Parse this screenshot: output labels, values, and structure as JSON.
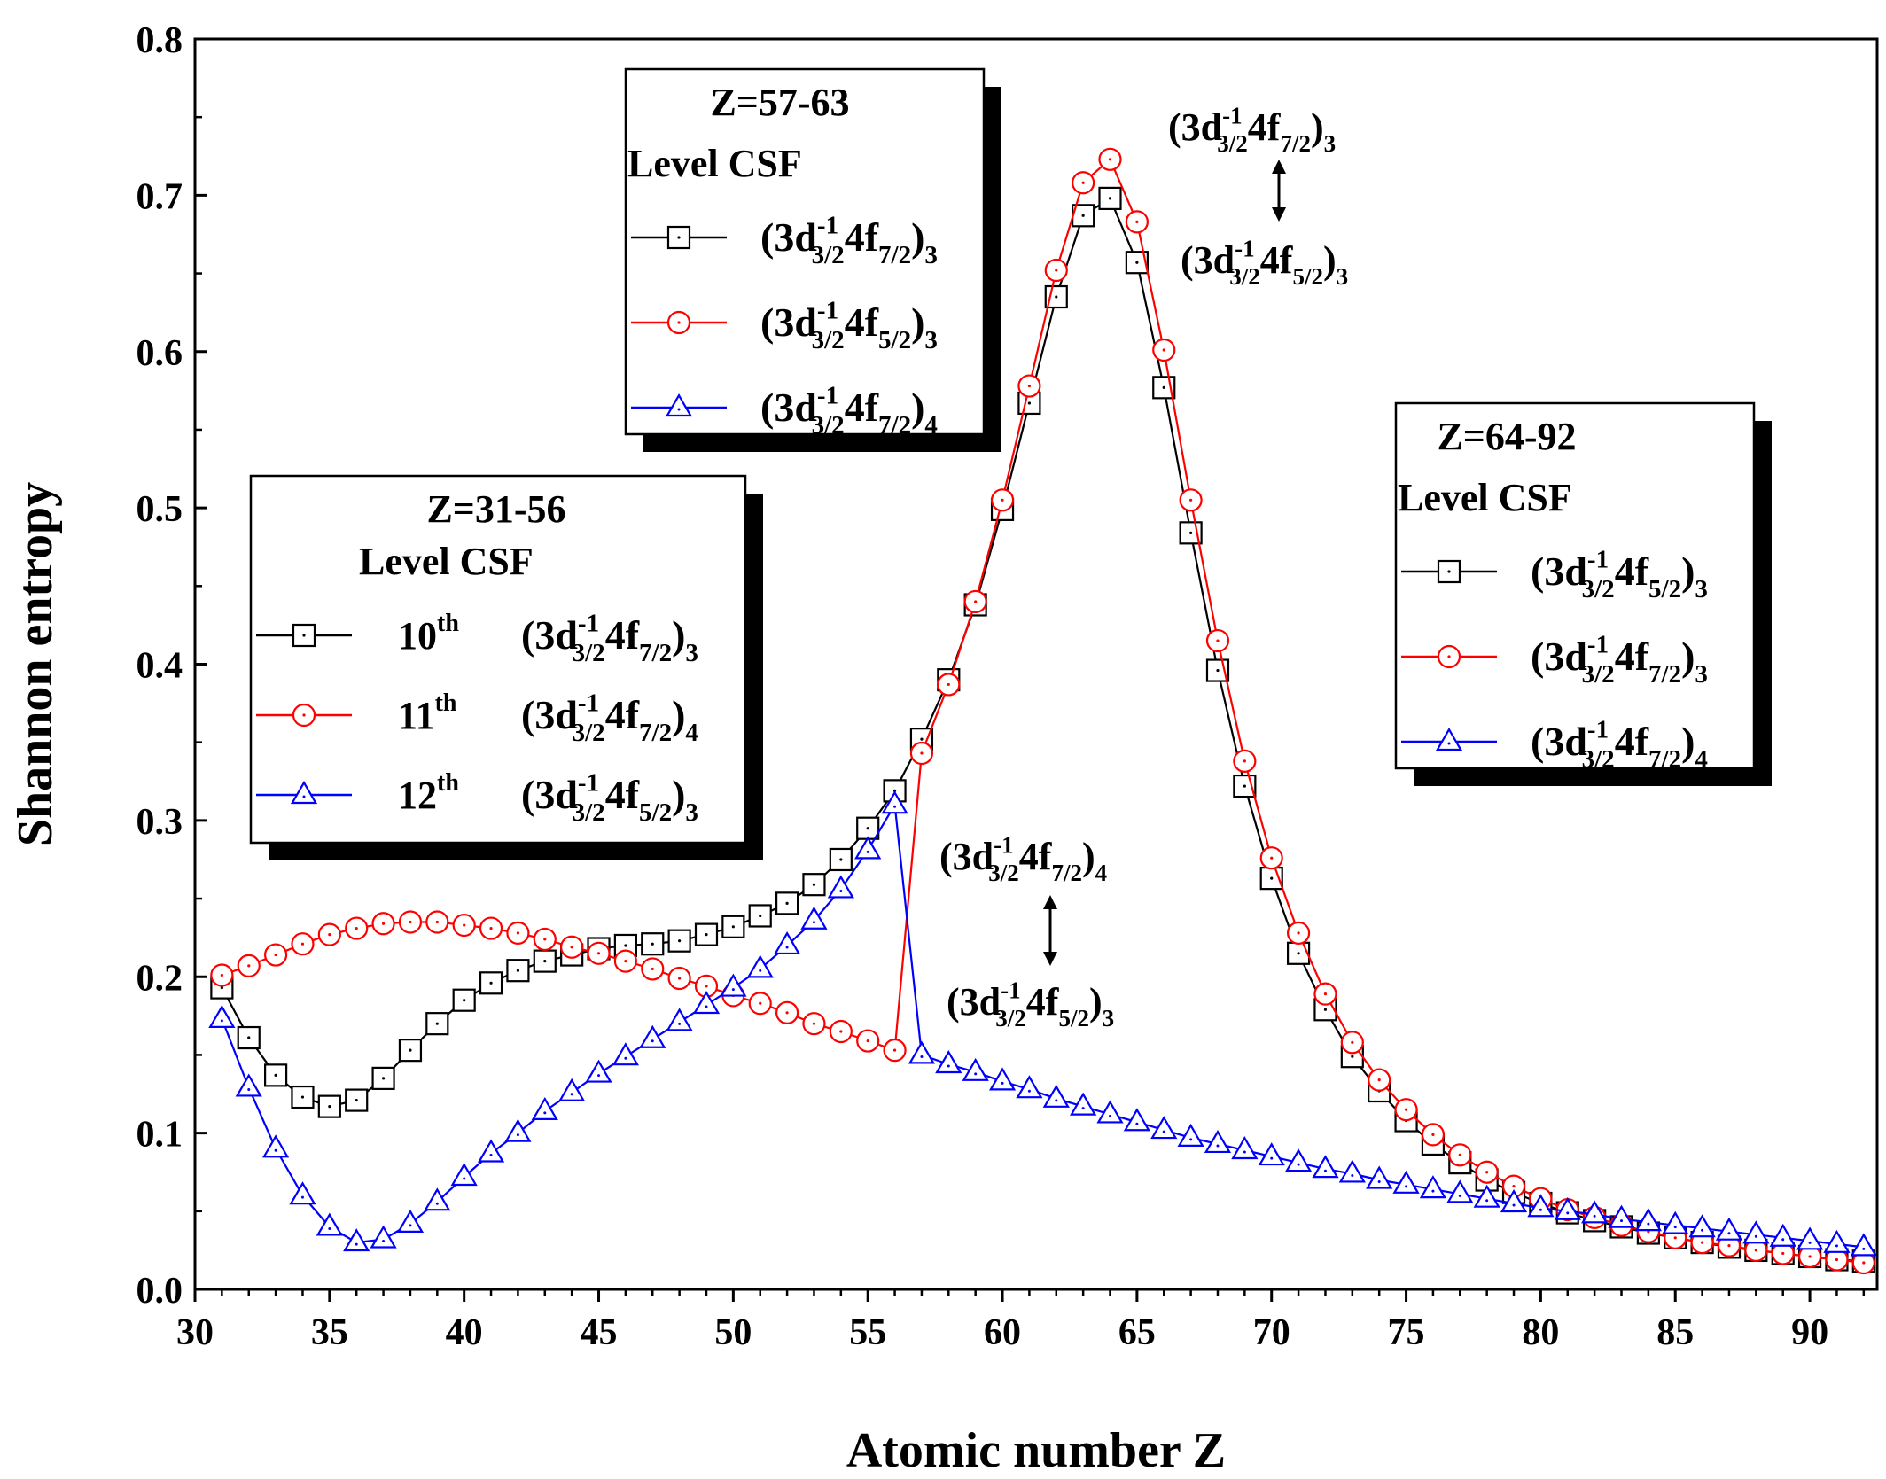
{
  "chart_data": {
    "type": "line",
    "xlabel": "Atomic number Z",
    "ylabel": "Shannon entropy",
    "xlim": [
      30,
      92.5
    ],
    "ylim": [
      0,
      0.8
    ],
    "x_ticks": [
      "30",
      "35",
      "40",
      "45",
      "50",
      "55",
      "60",
      "65",
      "70",
      "75",
      "80",
      "85",
      "90"
    ],
    "y_ticks": [
      "0.0",
      "0.1",
      "0.2",
      "0.3",
      "0.4",
      "0.5",
      "0.6",
      "0.7",
      "0.8"
    ],
    "x": [
      31,
      32,
      33,
      34,
      35,
      36,
      37,
      38,
      39,
      40,
      41,
      42,
      43,
      44,
      45,
      46,
      47,
      48,
      49,
      50,
      51,
      52,
      53,
      54,
      55,
      56,
      57,
      58,
      59,
      60,
      61,
      62,
      63,
      64,
      65,
      66,
      67,
      68,
      69,
      70,
      71,
      72,
      73,
      74,
      75,
      76,
      77,
      78,
      79,
      80,
      81,
      82,
      83,
      84,
      85,
      86,
      87,
      88,
      89,
      90,
      91,
      92
    ],
    "series": [
      {
        "name": "black-square",
        "color": "#000000",
        "marker": "square",
        "values": [
          0.193,
          0.161,
          0.137,
          0.123,
          0.117,
          0.121,
          0.135,
          0.153,
          0.17,
          0.185,
          0.196,
          0.204,
          0.21,
          0.214,
          0.218,
          0.22,
          0.221,
          0.223,
          0.227,
          0.232,
          0.239,
          0.247,
          0.259,
          0.275,
          0.295,
          0.319,
          0.352,
          0.39,
          0.438,
          0.499,
          0.567,
          0.635,
          0.687,
          0.698,
          0.657,
          0.577,
          0.484,
          0.396,
          0.322,
          0.263,
          0.215,
          0.179,
          0.149,
          0.127,
          0.108,
          0.093,
          0.081,
          0.07,
          0.062,
          0.055,
          0.049,
          0.044,
          0.04,
          0.036,
          0.033,
          0.03,
          0.027,
          0.025,
          0.023,
          0.021,
          0.019,
          0.018
        ]
      },
      {
        "name": "red-circle",
        "color": "#ff0000",
        "marker": "circle",
        "values": [
          0.201,
          0.207,
          0.214,
          0.221,
          0.227,
          0.231,
          0.234,
          0.235,
          0.235,
          0.233,
          0.231,
          0.228,
          0.224,
          0.219,
          0.215,
          0.21,
          0.205,
          0.199,
          0.194,
          0.188,
          0.183,
          0.177,
          0.17,
          0.165,
          0.159,
          0.153,
          0.343,
          0.387,
          0.44,
          0.505,
          0.578,
          0.652,
          0.708,
          0.723,
          0.683,
          0.601,
          0.505,
          0.415,
          0.338,
          0.276,
          0.228,
          0.189,
          0.158,
          0.134,
          0.115,
          0.099,
          0.086,
          0.075,
          0.066,
          0.058,
          0.051,
          0.046,
          0.041,
          0.037,
          0.033,
          0.03,
          0.028,
          0.025,
          0.023,
          0.021,
          0.019,
          0.017
        ]
      },
      {
        "name": "blue-triangle",
        "color": "#0000ff",
        "marker": "triangle",
        "values": [
          0.173,
          0.129,
          0.09,
          0.06,
          0.04,
          0.03,
          0.032,
          0.042,
          0.056,
          0.072,
          0.087,
          0.1,
          0.114,
          0.126,
          0.138,
          0.149,
          0.16,
          0.171,
          0.182,
          0.193,
          0.205,
          0.22,
          0.236,
          0.256,
          0.281,
          0.31,
          0.15,
          0.144,
          0.139,
          0.133,
          0.128,
          0.122,
          0.117,
          0.112,
          0.107,
          0.102,
          0.097,
          0.093,
          0.089,
          0.085,
          0.081,
          0.077,
          0.074,
          0.07,
          0.067,
          0.064,
          0.061,
          0.058,
          0.055,
          0.052,
          0.05,
          0.048,
          0.045,
          0.043,
          0.041,
          0.039,
          0.037,
          0.035,
          0.033,
          0.031,
          0.029,
          0.027
        ]
      }
    ],
    "legends": [
      {
        "title": "Z=31-56",
        "header": "Level   CSF",
        "entries": [
          {
            "marker": "square",
            "color": "#000000",
            "level_num": "10",
            "level_sup": "th",
            "csf_j": "7/2",
            "csf_J": "3"
          },
          {
            "marker": "circle",
            "color": "#ff0000",
            "level_num": "11",
            "level_sup": "th",
            "csf_j": "7/2",
            "csf_J": "4"
          },
          {
            "marker": "triangle",
            "color": "#0000ff",
            "level_num": "12",
            "level_sup": "th",
            "csf_j": "5/2",
            "csf_J": "3"
          }
        ]
      },
      {
        "title": "Z=57-63",
        "header": "Level   CSF",
        "entries": [
          {
            "marker": "square",
            "color": "#000000",
            "csf_j": "7/2",
            "csf_J": "3"
          },
          {
            "marker": "circle",
            "color": "#ff0000",
            "csf_j": "5/2",
            "csf_J": "3"
          },
          {
            "marker": "triangle",
            "color": "#0000ff",
            "csf_j": "7/2",
            "csf_J": "4"
          }
        ]
      },
      {
        "title": "Z=64-92",
        "header": "Level   CSF",
        "entries": [
          {
            "marker": "square",
            "color": "#000000",
            "csf_j": "5/2",
            "csf_J": "3"
          },
          {
            "marker": "circle",
            "color": "#ff0000",
            "csf_j": "7/2",
            "csf_J": "3"
          },
          {
            "marker": "triangle",
            "color": "#0000ff",
            "csf_j": "7/2",
            "csf_J": "4"
          }
        ]
      }
    ],
    "annotations": [
      {
        "name": "top-upper",
        "csf_j": "7/2",
        "csf_J": "3"
      },
      {
        "name": "top-lower",
        "csf_j": "5/2",
        "csf_J": "3"
      },
      {
        "name": "mid-upper",
        "csf_j": "7/2",
        "csf_J": "4"
      },
      {
        "name": "mid-lower",
        "csf_j": "5/2",
        "csf_J": "3"
      }
    ],
    "csf_base": "3d",
    "csf_base_sup": "-1",
    "csf_base_sub": "3/2",
    "csf_orbital": "4f"
  }
}
